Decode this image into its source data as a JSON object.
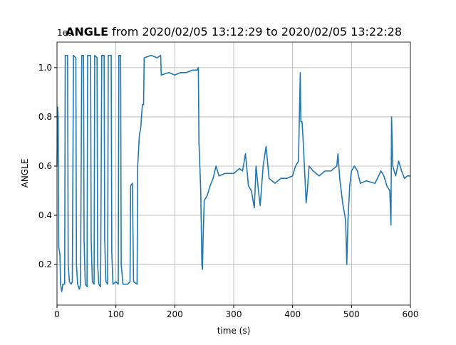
{
  "chart_data": {
    "type": "line",
    "title_var": "ANGLE",
    "title_rest": "from 2020/02/05 13:12:29 to 2020/02/05 13:22:28",
    "offset_text": "1e9",
    "xlabel": "time (s)",
    "ylabel": "ANGLE",
    "xlim": [
      0,
      600
    ],
    "xticks": [
      0,
      100,
      200,
      300,
      400,
      500,
      600
    ],
    "ylim": [
      0.035,
      1.104
    ],
    "yticks": [
      0.2,
      0.4,
      0.6,
      0.8,
      {
        "value": 1,
        "label": "1.0"
      }
    ],
    "grid": true,
    "series": [
      {
        "color": "#1f77b4",
        "x": [
          0,
          1,
          2,
          3,
          5,
          6,
          8,
          10,
          13,
          14,
          18,
          19,
          21,
          24,
          26,
          28,
          32,
          33,
          35,
          38,
          40,
          42,
          45,
          46,
          48,
          51,
          52,
          57,
          58,
          60,
          63,
          64,
          68,
          69,
          71,
          74,
          76,
          80,
          81,
          83,
          86,
          87,
          92,
          93,
          95,
          100,
          104,
          105,
          108,
          109,
          112,
          120,
          124,
          125,
          128,
          130,
          136,
          137,
          140,
          142,
          145,
          147,
          148,
          160,
          170,
          176,
          177,
          190,
          200,
          210,
          220,
          230,
          238,
          240,
          241,
          244,
          246,
          247,
          248,
          250,
          255,
          260,
          265,
          270,
          275,
          285,
          300,
          305,
          310,
          315,
          320,
          325,
          330,
          335,
          338,
          342,
          345,
          350,
          355,
          360,
          370,
          380,
          390,
          400,
          405,
          410,
          413,
          414,
          416,
          418,
          420,
          423,
          425,
          428,
          435,
          445,
          455,
          465,
          475,
          477,
          480,
          485,
          490,
          492,
          494,
          497,
          500,
          505,
          510,
          515,
          525,
          540,
          550,
          555,
          560,
          565,
          567,
          568,
          570,
          575,
          580,
          585,
          590,
          595,
          600
        ],
        "values": [
          0.6,
          0.84,
          0.8,
          0.27,
          0.24,
          0.12,
          0.09,
          0.12,
          0.12,
          1.05,
          1.05,
          0.2,
          0.13,
          0.12,
          0.13,
          1.05,
          1.04,
          0.2,
          0.12,
          0.1,
          0.12,
          1.05,
          1.05,
          0.3,
          0.12,
          0.11,
          1.05,
          1.05,
          0.3,
          0.13,
          0.12,
          1.05,
          1.04,
          0.2,
          0.12,
          0.11,
          1.05,
          1.05,
          0.3,
          0.13,
          0.12,
          1.05,
          1.05,
          0.25,
          0.12,
          0.13,
          0.12,
          1.05,
          1.05,
          0.2,
          0.12,
          0.12,
          0.13,
          0.52,
          0.53,
          0.13,
          0.12,
          0.6,
          0.73,
          0.75,
          0.85,
          0.85,
          1.04,
          1.05,
          1.04,
          1.05,
          0.97,
          0.98,
          0.97,
          0.98,
          0.98,
          0.99,
          0.99,
          1.0,
          0.7,
          0.5,
          0.2,
          0.18,
          0.3,
          0.46,
          0.48,
          0.52,
          0.55,
          0.6,
          0.56,
          0.57,
          0.57,
          0.58,
          0.59,
          0.58,
          0.65,
          0.52,
          0.5,
          0.43,
          0.6,
          0.5,
          0.44,
          0.6,
          0.68,
          0.55,
          0.53,
          0.55,
          0.55,
          0.56,
          0.6,
          0.62,
          0.98,
          0.78,
          0.78,
          0.7,
          0.6,
          0.45,
          0.5,
          0.6,
          0.58,
          0.56,
          0.58,
          0.58,
          0.6,
          0.65,
          0.55,
          0.45,
          0.38,
          0.2,
          0.38,
          0.52,
          0.58,
          0.6,
          0.58,
          0.53,
          0.54,
          0.53,
          0.58,
          0.56,
          0.52,
          0.5,
          0.36,
          0.8,
          0.6,
          0.56,
          0.62,
          0.58,
          0.55,
          0.56,
          0.56
        ]
      }
    ]
  }
}
